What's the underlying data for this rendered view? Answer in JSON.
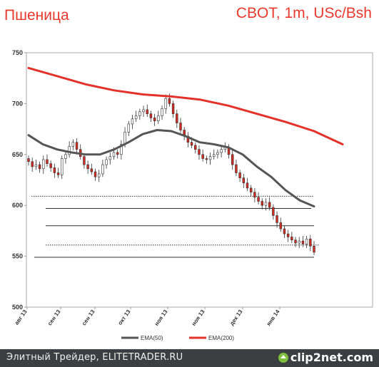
{
  "header": {
    "title": "Пшеница",
    "subtitle": "CBOT, 1m, USc/Bsh"
  },
  "footer": {
    "text": "Элитный Трейдер, ELITETRADER.RU",
    "brand": "clip2net.com"
  },
  "colors": {
    "title": "#e8392c",
    "candle_up": "#ffffff",
    "candle_down": "#d42a1f",
    "ema50": "#555555",
    "ema200": "#e2322a",
    "footer_bg": "#3b3f42"
  },
  "chart_data": {
    "type": "line",
    "title": "Пшеница",
    "subtitle": "CBOT, 1m, USc/Bsh",
    "ylim": [
      500,
      750
    ],
    "yticks": [
      500,
      550,
      600,
      650,
      700,
      750
    ],
    "x_labels": [
      "авг 13",
      "сен 13",
      "сен 13",
      "окт 13",
      "ноя 13",
      "ноя 13",
      "дек 13",
      "янв 14"
    ],
    "legend": [
      "EMA(50)",
      "EMA(200)"
    ],
    "legend_position": "bottom",
    "series": [
      {
        "name": "EMA(50)",
        "color": "#555555",
        "points": [
          [
            0,
            669
          ],
          [
            0.05,
            660
          ],
          [
            0.1,
            655
          ],
          [
            0.15,
            652
          ],
          [
            0.2,
            650
          ],
          [
            0.25,
            650
          ],
          [
            0.3,
            655
          ],
          [
            0.35,
            662
          ],
          [
            0.4,
            670
          ],
          [
            0.45,
            674
          ],
          [
            0.5,
            673
          ],
          [
            0.55,
            668
          ],
          [
            0.6,
            662
          ],
          [
            0.65,
            660
          ],
          [
            0.7,
            657
          ],
          [
            0.75,
            650
          ],
          [
            0.8,
            638
          ],
          [
            0.85,
            628
          ],
          [
            0.9,
            615
          ],
          [
            0.95,
            605
          ],
          [
            1.0,
            599
          ]
        ]
      },
      {
        "name": "EMA(200)",
        "color": "#e2322a",
        "points": [
          [
            0,
            735
          ],
          [
            0.1,
            727
          ],
          [
            0.2,
            719
          ],
          [
            0.3,
            713
          ],
          [
            0.4,
            709
          ],
          [
            0.5,
            707
          ],
          [
            0.6,
            704
          ],
          [
            0.7,
            698
          ],
          [
            0.8,
            690
          ],
          [
            0.9,
            682
          ],
          [
            1.0,
            673
          ],
          [
            1.1,
            660
          ]
        ]
      }
    ],
    "close_series": [
      643,
      638,
      640,
      636,
      645,
      641,
      637,
      632,
      630,
      646,
      650,
      658,
      662,
      655,
      648,
      640,
      636,
      633,
      628,
      631,
      640,
      645,
      648,
      652,
      650,
      660,
      672,
      680,
      685,
      688,
      692,
      694,
      690,
      686,
      683,
      688,
      695,
      705,
      700,
      690,
      681,
      674,
      668,
      662,
      659,
      655,
      650,
      646,
      645,
      648,
      650,
      652,
      655,
      657,
      650,
      640,
      632,
      627,
      622,
      617,
      613,
      608,
      604,
      600,
      603,
      598,
      590,
      583,
      577,
      572,
      569,
      566,
      563,
      565,
      562,
      567,
      560,
      554
    ],
    "horizontal_lines": [
      {
        "value": 609,
        "style": "dotted",
        "x_from": 0.01,
        "x_to": 1.0
      },
      {
        "value": 597,
        "style": "solid",
        "x_from": 0.06,
        "x_to": 0.99
      },
      {
        "value": 580,
        "style": "solid",
        "x_from": 0.06,
        "x_to": 1.0
      },
      {
        "value": 561,
        "style": "dotted",
        "x_from": 0.06,
        "x_to": 1.02
      },
      {
        "value": 549,
        "style": "solid",
        "x_from": 0.02,
        "x_to": 1.0
      }
    ],
    "grid": false
  }
}
